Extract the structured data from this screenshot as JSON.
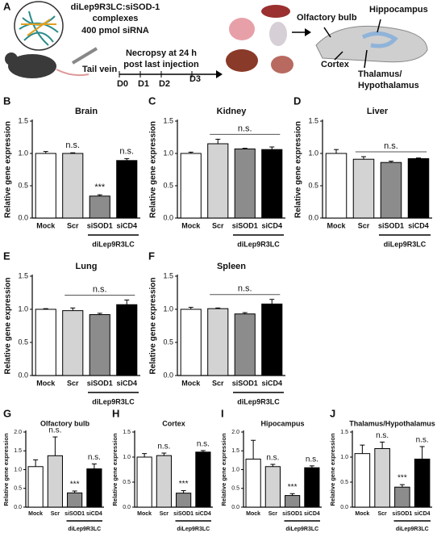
{
  "panel_a": {
    "letter": "A",
    "complex_title": "diLep9R3LC:siSOD-1",
    "complex_sub": "complexes",
    "dose": "400 pmol siRNA",
    "route": "Tail vein",
    "necropsy_1": "Necropsy at 24 h",
    "necropsy_2": "post last injection",
    "days": [
      "D0",
      "D1",
      "D2",
      "D3"
    ],
    "regions": {
      "olfactory": "Olfactory bulb",
      "hippocampus": "Hippocampus",
      "cortex": "Cortex",
      "thalamus_1": "Thalamus/",
      "thalamus_2": "Hypothalamus"
    }
  },
  "chart_data": [
    {
      "type": "bar",
      "panel": "B",
      "title": "Brain",
      "ylabel": "Relative gene expression",
      "categories": [
        "Mock",
        "Scr",
        "siSOD1",
        "siCD4"
      ],
      "values": [
        1.0,
        1.0,
        0.34,
        0.89
      ],
      "errors": [
        0.03,
        0.01,
        0.02,
        0.03
      ],
      "colors": [
        "#ffffff",
        "#d3d3d3",
        "#8c8c8c",
        "#000000"
      ],
      "ylim": [
        0,
        1.5
      ],
      "yticks": [
        {
          "value": 0,
          "label": "0.0"
        },
        0.5,
        {
          "value": 1,
          "label": "1.0"
        },
        1.5
      ],
      "annotations": [
        {
          "text": "n.s.",
          "at": 1
        },
        {
          "text": "***",
          "at": 2
        },
        {
          "text": "n.s.",
          "at": 3
        }
      ],
      "group": {
        "label": "diLep9R3LC",
        "from": 2,
        "to": 3
      }
    },
    {
      "type": "bar",
      "panel": "C",
      "title": "Kidney",
      "ylabel": "Relative gene expression",
      "categories": [
        "Mock",
        "Scr",
        "siSOD1",
        "siCD4"
      ],
      "values": [
        1.0,
        1.15,
        1.07,
        1.06
      ],
      "errors": [
        0.02,
        0.07,
        0.01,
        0.04
      ],
      "colors": [
        "#ffffff",
        "#d3d3d3",
        "#8c8c8c",
        "#000000"
      ],
      "ylim": [
        0,
        1.5
      ],
      "yticks": [
        {
          "value": 0,
          "label": "0.0"
        },
        0.5,
        {
          "value": 1,
          "label": "1.0"
        },
        1.5
      ],
      "annotations": [
        {
          "text": "n.s.",
          "from": 1,
          "to": 3
        }
      ],
      "group": {
        "label": "diLep9R3LC",
        "from": 2,
        "to": 3
      }
    },
    {
      "type": "bar",
      "panel": "D",
      "title": "Liver",
      "ylabel": "Relative gene expression",
      "categories": [
        "Mock",
        "Scr",
        "siSOD1",
        "siCD4"
      ],
      "values": [
        1.0,
        0.91,
        0.86,
        0.92
      ],
      "errors": [
        0.06,
        0.04,
        0.02,
        0.01
      ],
      "colors": [
        "#ffffff",
        "#d3d3d3",
        "#8c8c8c",
        "#000000"
      ],
      "ylim": [
        0,
        1.5
      ],
      "yticks": [
        {
          "value": 0,
          "label": "0.0"
        },
        0.5,
        {
          "value": 1,
          "label": "1.0"
        },
        1.5
      ],
      "annotations": [
        {
          "text": "n.s.",
          "from": 1,
          "to": 3
        }
      ],
      "group": {
        "label": "diLep9R3LC",
        "from": 2,
        "to": 3
      }
    },
    {
      "type": "bar",
      "panel": "E",
      "title": "Lung",
      "ylabel": "Relative gene expression",
      "categories": [
        "Mock",
        "Scr",
        "siSOD1",
        "siCD4"
      ],
      "values": [
        1.0,
        0.98,
        0.92,
        1.07
      ],
      "errors": [
        0.01,
        0.04,
        0.02,
        0.07
      ],
      "colors": [
        "#ffffff",
        "#d3d3d3",
        "#8c8c8c",
        "#000000"
      ],
      "ylim": [
        0,
        1.5
      ],
      "yticks": [
        {
          "value": 0,
          "label": "0.0"
        },
        0.5,
        {
          "value": 1,
          "label": "1.0"
        },
        1.5
      ],
      "annotations": [
        {
          "text": "n.s.",
          "from": 1,
          "to": 3
        }
      ],
      "group": {
        "label": "diLep9R3LC",
        "from": 2,
        "to": 3
      }
    },
    {
      "type": "bar",
      "panel": "F",
      "title": "Spleen",
      "ylabel": "Relative gene expression",
      "categories": [
        "Mock",
        "Scr",
        "siSOD1",
        "siCD4"
      ],
      "values": [
        1.0,
        1.01,
        0.93,
        1.08
      ],
      "errors": [
        0.03,
        0.01,
        0.02,
        0.07
      ],
      "colors": [
        "#ffffff",
        "#d3d3d3",
        "#8c8c8c",
        "#000000"
      ],
      "ylim": [
        0,
        1.5
      ],
      "yticks": [
        {
          "value": 0,
          "label": "0.0"
        },
        0.5,
        {
          "value": 1,
          "label": "1.0"
        },
        1.5
      ],
      "annotations": [
        {
          "text": "n.s.",
          "from": 1,
          "to": 3
        }
      ],
      "group": {
        "label": "diLep9R3LC",
        "from": 2,
        "to": 3
      }
    },
    {
      "type": "bar",
      "panel": "G",
      "title": "Olfactory bulb",
      "ylabel": "Relative gene expression",
      "categories": [
        "Mock",
        "Scr",
        "siSOD1",
        "siCD4"
      ],
      "values": [
        1.08,
        1.37,
        0.38,
        1.02
      ],
      "errors": [
        0.18,
        0.5,
        0.05,
        0.13
      ],
      "colors": [
        "#ffffff",
        "#d3d3d3",
        "#8c8c8c",
        "#000000"
      ],
      "ylim": [
        0,
        2
      ],
      "yticks": [
        {
          "value": 0,
          "label": "0.0"
        },
        0.5,
        {
          "value": 1,
          "label": "1.0"
        },
        1.5,
        {
          "value": 2,
          "label": "2.0"
        }
      ],
      "annotations": [
        {
          "text": "n.s.",
          "at": 1
        },
        {
          "text": "***",
          "at": 2
        },
        {
          "text": "n.s.",
          "at": 3
        }
      ],
      "group": {
        "label": "diLep9R3LC",
        "from": 2,
        "to": 3
      }
    },
    {
      "type": "bar",
      "panel": "H",
      "title": "Cortex",
      "ylabel": "Relative gene expression",
      "categories": [
        "Mock",
        "Scr",
        "siSOD1",
        "siCD4"
      ],
      "values": [
        1.0,
        1.03,
        0.28,
        1.1
      ],
      "errors": [
        0.07,
        0.05,
        0.05,
        0.03
      ],
      "colors": [
        "#ffffff",
        "#d3d3d3",
        "#8c8c8c",
        "#000000"
      ],
      "ylim": [
        0,
        1.5
      ],
      "yticks": [
        {
          "value": 0,
          "label": "0.0"
        },
        0.5,
        {
          "value": 1,
          "label": "1.0"
        },
        1.5
      ],
      "annotations": [
        {
          "text": "n.s.",
          "at": 1
        },
        {
          "text": "***",
          "at": 2
        },
        {
          "text": "n.s.",
          "at": 3
        }
      ],
      "group": {
        "label": "diLep9R3LC",
        "from": 2,
        "to": 3
      }
    },
    {
      "type": "bar",
      "panel": "I",
      "title": "Hipocampus",
      "ylabel": "Relative gene expression",
      "categories": [
        "Mock",
        "Scr",
        "siSOD1",
        "siCD4"
      ],
      "values": [
        1.28,
        1.08,
        0.31,
        1.05
      ],
      "errors": [
        0.5,
        0.06,
        0.05,
        0.05
      ],
      "colors": [
        "#ffffff",
        "#d3d3d3",
        "#8c8c8c",
        "#000000"
      ],
      "ylim": [
        0,
        2
      ],
      "yticks": [
        {
          "value": 0,
          "label": "0.0"
        },
        0.5,
        {
          "value": 1,
          "label": "1.0"
        },
        1.5,
        {
          "value": 2,
          "label": "2.0"
        }
      ],
      "annotations": [
        {
          "text": "n.s.",
          "at": 1
        },
        {
          "text": "***",
          "at": 2
        },
        {
          "text": "n.s.",
          "at": 3
        }
      ],
      "group": {
        "label": "diLep9R3LC",
        "from": 2,
        "to": 3
      }
    },
    {
      "type": "bar",
      "panel": "J",
      "title": "Thalamus/Hypothalamus",
      "ylabel": "Relative gene expression",
      "categories": [
        "Mock",
        "Scr",
        "siSOD1",
        "siCD4"
      ],
      "values": [
        1.07,
        1.17,
        0.4,
        0.96
      ],
      "errors": [
        0.17,
        0.13,
        0.05,
        0.25
      ],
      "colors": [
        "#ffffff",
        "#d3d3d3",
        "#8c8c8c",
        "#000000"
      ],
      "ylim": [
        0,
        1.5
      ],
      "yticks": [
        {
          "value": 0,
          "label": "0.0"
        },
        0.5,
        {
          "value": 1,
          "label": "1.0"
        },
        1.5
      ],
      "annotations": [
        {
          "text": "n.s.",
          "at": 1
        },
        {
          "text": "***",
          "at": 2
        },
        {
          "text": "n.s.",
          "at": 3
        }
      ],
      "group": {
        "label": "diLep9R3LC",
        "from": 2,
        "to": 3
      }
    }
  ]
}
